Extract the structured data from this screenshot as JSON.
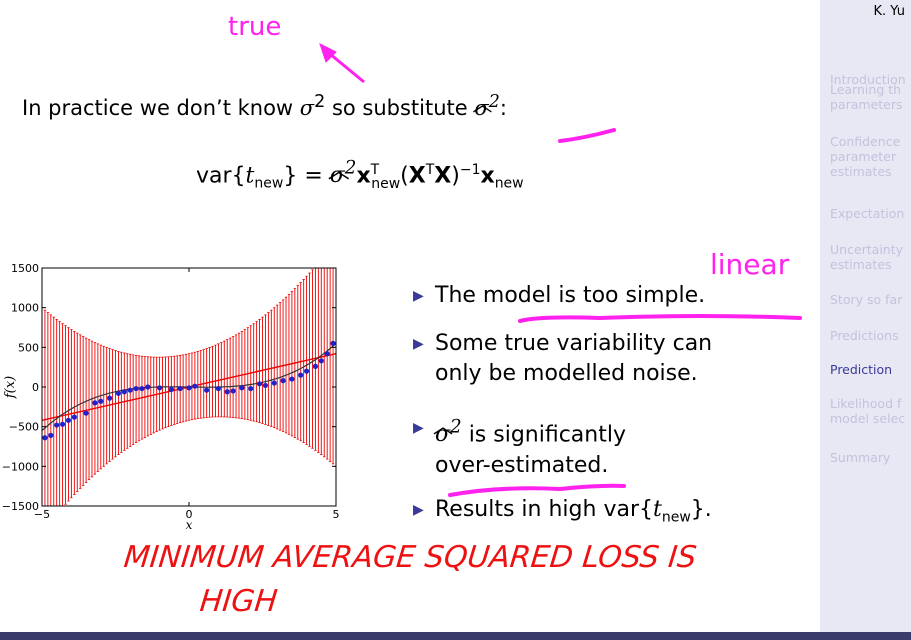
{
  "sidebar": {
    "author": "K. Yu",
    "items": [
      {
        "label": "Introduction",
        "active": false
      },
      {
        "label": "Learning th\nparameters",
        "active": false
      },
      {
        "label": "Confidence\nparameter\nestimates",
        "active": false
      },
      {
        "label": "Expectation",
        "active": false
      },
      {
        "label": "Uncertainty\nestimates",
        "active": false
      },
      {
        "label": "Story so far",
        "active": false
      },
      {
        "label": "Predictions",
        "active": false
      },
      {
        "label": "Prediction",
        "active": true
      },
      {
        "label": "Likelihood f\nmodel selec",
        "active": false
      },
      {
        "label": "Summary",
        "active": false
      }
    ]
  },
  "annotations": {
    "true_label": "true",
    "linear_label": "linear",
    "handwritten_line1": "MINIMUM   AVERAGE  SQUARED  LOSS  IS",
    "handwritten_line2": "HIGH",
    "annotation_color": "#ff22ee",
    "handwritten_color": "#ee1111"
  },
  "intro": {
    "prefix": "In practice we don’t know ",
    "sigma": "σ",
    "sq": "2",
    "mid": " so substitute ",
    "suffix": ":"
  },
  "equation": {
    "lhs_var": "var{",
    "t": "t",
    "new": "new",
    "rhs_close": "} = ",
    "x_bold": "x",
    "transpose": "T",
    "X_bold": "X",
    "inverse": "−1"
  },
  "bullets": [
    {
      "text": "The model is too simple."
    },
    {
      "text": "Some true variability can"
    },
    {
      "text": "only be modelled noise."
    },
    {
      "text": " is significantly"
    },
    {
      "text": "over-estimated."
    },
    {
      "text": "Results in high var{"
    }
  ],
  "chart_data": {
    "type": "scatter",
    "ylabel": "f(x)",
    "xlabel": "x",
    "xlim": [
      -5,
      5
    ],
    "ylim": [
      -1500,
      1500
    ],
    "x_ticks": [
      -5,
      0,
      5
    ],
    "y_ticks": [
      -1500,
      -1000,
      -500,
      0,
      500,
      1000,
      1500
    ],
    "grid": false,
    "points_x": [
      -4.9,
      -4.7,
      -4.5,
      -4.3,
      -4.1,
      -3.9,
      -3.5,
      -3.2,
      -3.0,
      -2.7,
      -2.4,
      -2.2,
      -2.0,
      -1.8,
      -1.6,
      -1.4,
      -1.0,
      -0.6,
      -0.3,
      0.0,
      0.2,
      0.6,
      1.0,
      1.3,
      1.5,
      1.8,
      2.1,
      2.4,
      2.6,
      2.9,
      3.2,
      3.5,
      3.8,
      4.0,
      4.3,
      4.5,
      4.7,
      4.9
    ],
    "points_y": [
      -640,
      -610,
      -480,
      -470,
      -420,
      -380,
      -330,
      -200,
      -180,
      -140,
      -80,
      -60,
      -40,
      -20,
      -20,
      0,
      -10,
      -30,
      -20,
      -10,
      10,
      -40,
      -20,
      -60,
      -50,
      -10,
      -20,
      40,
      20,
      50,
      80,
      100,
      150,
      200,
      260,
      330,
      420,
      550
    ],
    "fit_line": {
      "slope": 84,
      "intercept": 0
    },
    "errorbar_halfwidth": {
      "base": 420,
      "quadratic": 40
    },
    "colors": {
      "points": "#2222cc",
      "fit": "#ee0000",
      "errorbars": "#ee0000",
      "true_curve": "#333333"
    }
  }
}
